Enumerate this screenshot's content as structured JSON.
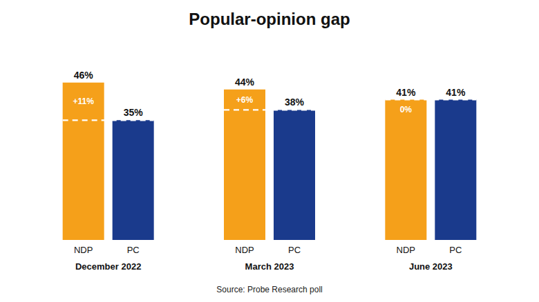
{
  "chart_data": {
    "type": "bar",
    "title": "Popular-opinion gap",
    "categories": [
      "December 2022",
      "March 2023",
      "June 2023"
    ],
    "series": [
      {
        "name": "NDP",
        "color": "#F5A01A",
        "values": [
          46,
          44,
          41
        ],
        "value_labels": [
          "46%",
          "44%",
          "41%"
        ]
      },
      {
        "name": "PC",
        "color": "#1A3A8C",
        "values": [
          35,
          38,
          41
        ],
        "value_labels": [
          "35%",
          "38%",
          "41%"
        ]
      }
    ],
    "annotations": [
      {
        "category": "December 2022",
        "text": "+11%"
      },
      {
        "category": "March 2023",
        "text": "+6%"
      },
      {
        "category": "June 2023",
        "text": "0%"
      }
    ],
    "source": "Source: Probe Research poll",
    "ylim": [
      0,
      54
    ],
    "data_labels": true,
    "grid": false,
    "tick_labels": "x"
  }
}
